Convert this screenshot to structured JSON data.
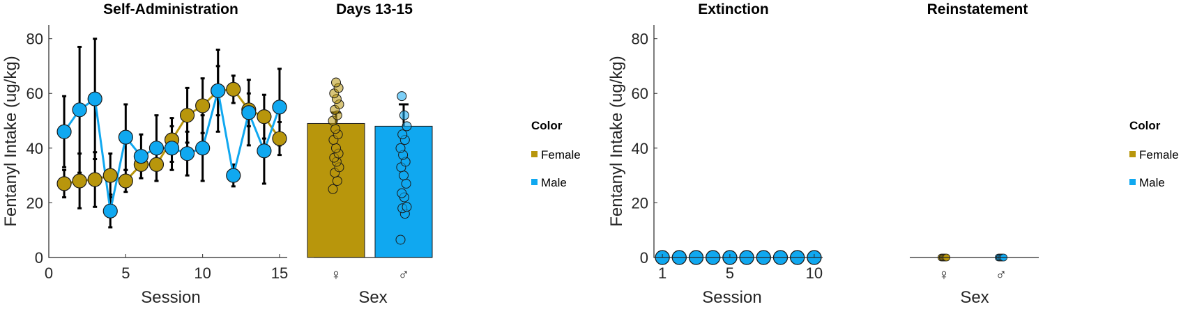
{
  "colors": {
    "female": "#B8960C",
    "male": "#10A8F0"
  },
  "chart_data": [
    {
      "type": "line",
      "title": "Self-Administration",
      "xlabel": "Session",
      "ylabel": "Fentanyl Intake (ug/kg)",
      "xlim": [
        0,
        15.5
      ],
      "ylim": [
        0,
        85
      ],
      "xticks": [
        0,
        5,
        10,
        15
      ],
      "yticks": [
        0,
        20,
        40,
        60,
        80
      ],
      "x": [
        1,
        2,
        3,
        4,
        5,
        6,
        7,
        8,
        9,
        10,
        11,
        12,
        13,
        14,
        15
      ],
      "series": [
        {
          "name": "Female",
          "color_key": "female",
          "values": [
            27,
            28,
            28.5,
            30,
            28,
            34,
            34,
            43,
            52,
            55.5,
            61,
            61.5,
            54,
            51.5,
            43.5
          ],
          "err": [
            5,
            10,
            10,
            8,
            4,
            5,
            6,
            8,
            10,
            10,
            9,
            5,
            6,
            8,
            6
          ]
        },
        {
          "name": "Male",
          "color_key": "male",
          "values": [
            46,
            54,
            58,
            17,
            44,
            37,
            40,
            40,
            38,
            40,
            61,
            30,
            53,
            39,
            55
          ],
          "err": [
            13,
            23,
            22,
            6,
            12,
            8,
            12,
            8,
            8,
            12,
            15,
            4,
            12,
            12,
            14
          ]
        }
      ]
    },
    {
      "type": "bar",
      "title": "Days 13-15",
      "xlabel": "Sex",
      "categories": [
        "♀",
        "♂"
      ],
      "ylim": [
        0,
        85
      ],
      "values": [
        49,
        48
      ],
      "err": [
        4,
        8
      ],
      "color_keys": [
        "female",
        "male"
      ],
      "points": [
        [
          25,
          28,
          31,
          33,
          35,
          36.5,
          38,
          40,
          43,
          45,
          47,
          50,
          52,
          54,
          56,
          58,
          60,
          62,
          64
        ],
        [
          6.5,
          16,
          18,
          18.5,
          22,
          23.5,
          27,
          30,
          33,
          35,
          37.5,
          40,
          43,
          45,
          48,
          52,
          59
        ]
      ]
    },
    {
      "type": "scatter",
      "title": "Extinction",
      "xlabel": "Session",
      "ylabel": "Fentanyl Intake (ug/kg)",
      "xlim": [
        0.5,
        10.5
      ],
      "ylim": [
        0,
        85
      ],
      "xticks": [
        1,
        5,
        10
      ],
      "yticks": [
        0,
        20,
        40,
        60,
        80
      ],
      "x": [
        1,
        2,
        3,
        4,
        5,
        6,
        7,
        8,
        9,
        10
      ],
      "series": [
        {
          "name": "Female",
          "color_key": "female",
          "values": [
            0,
            0,
            0,
            0,
            0,
            0,
            0,
            0,
            0,
            0
          ]
        },
        {
          "name": "Male",
          "color_key": "male",
          "values": [
            0,
            0,
            0,
            0,
            0,
            0,
            0,
            0,
            0,
            0
          ]
        }
      ]
    },
    {
      "type": "bar",
      "title": "Reinstatement",
      "xlabel": "Sex",
      "categories": [
        "♀",
        "♂"
      ],
      "ylim": [
        0,
        85
      ],
      "values": [
        0,
        0
      ],
      "color_keys": [
        "female",
        "male"
      ]
    }
  ],
  "legends": [
    {
      "title": "Color",
      "items": [
        {
          "label": "Female",
          "color_key": "female"
        },
        {
          "label": "Male",
          "color_key": "male"
        }
      ]
    },
    {
      "title": "Color",
      "items": [
        {
          "label": "Female",
          "color_key": "female"
        },
        {
          "label": "Male",
          "color_key": "male"
        }
      ]
    }
  ]
}
